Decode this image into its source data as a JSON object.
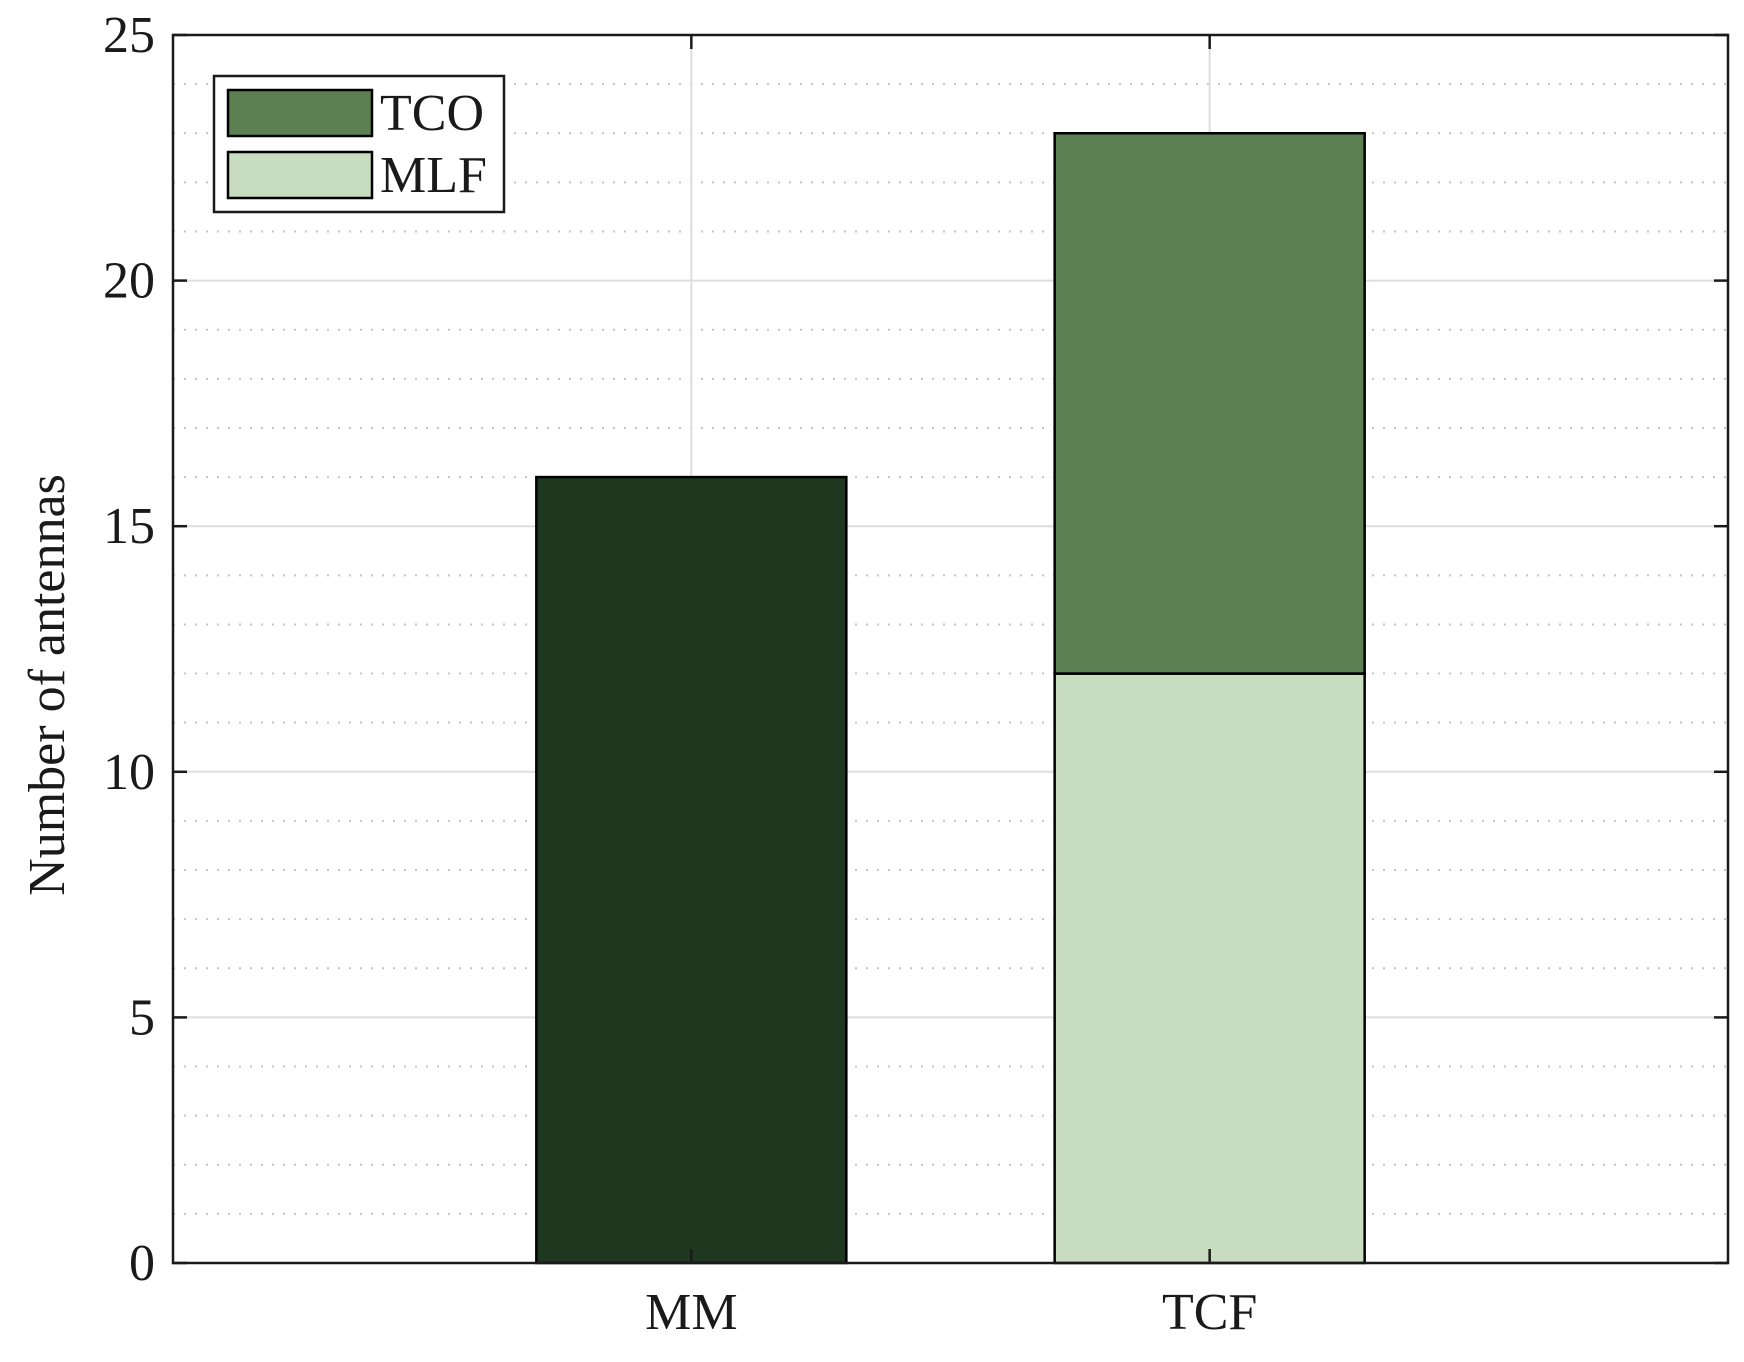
{
  "chart_data": {
    "type": "bar",
    "stacked": true,
    "categories": [
      "MM",
      "TCF"
    ],
    "series": [
      {
        "key": "base",
        "values": [
          16,
          0
        ],
        "color": "#1e3820"
      },
      {
        "name": "MLF",
        "values": [
          0,
          12
        ],
        "color": "#c8dcbf"
      },
      {
        "name": "TCO",
        "values": [
          0,
          11
        ],
        "color": "#5c8051"
      }
    ],
    "legend": {
      "placement": "top-left",
      "entries": [
        {
          "label": "TCO",
          "color": "#5c8051"
        },
        {
          "label": "MLF",
          "color": "#c8dcbf"
        }
      ]
    },
    "xlabel": "",
    "ylabel": "Number of antennas",
    "ylim": [
      0,
      25
    ],
    "yticks": [
      0,
      5,
      10,
      15,
      20,
      25
    ],
    "grid": {
      "major": true,
      "minor": true,
      "minor_step": 1
    }
  }
}
